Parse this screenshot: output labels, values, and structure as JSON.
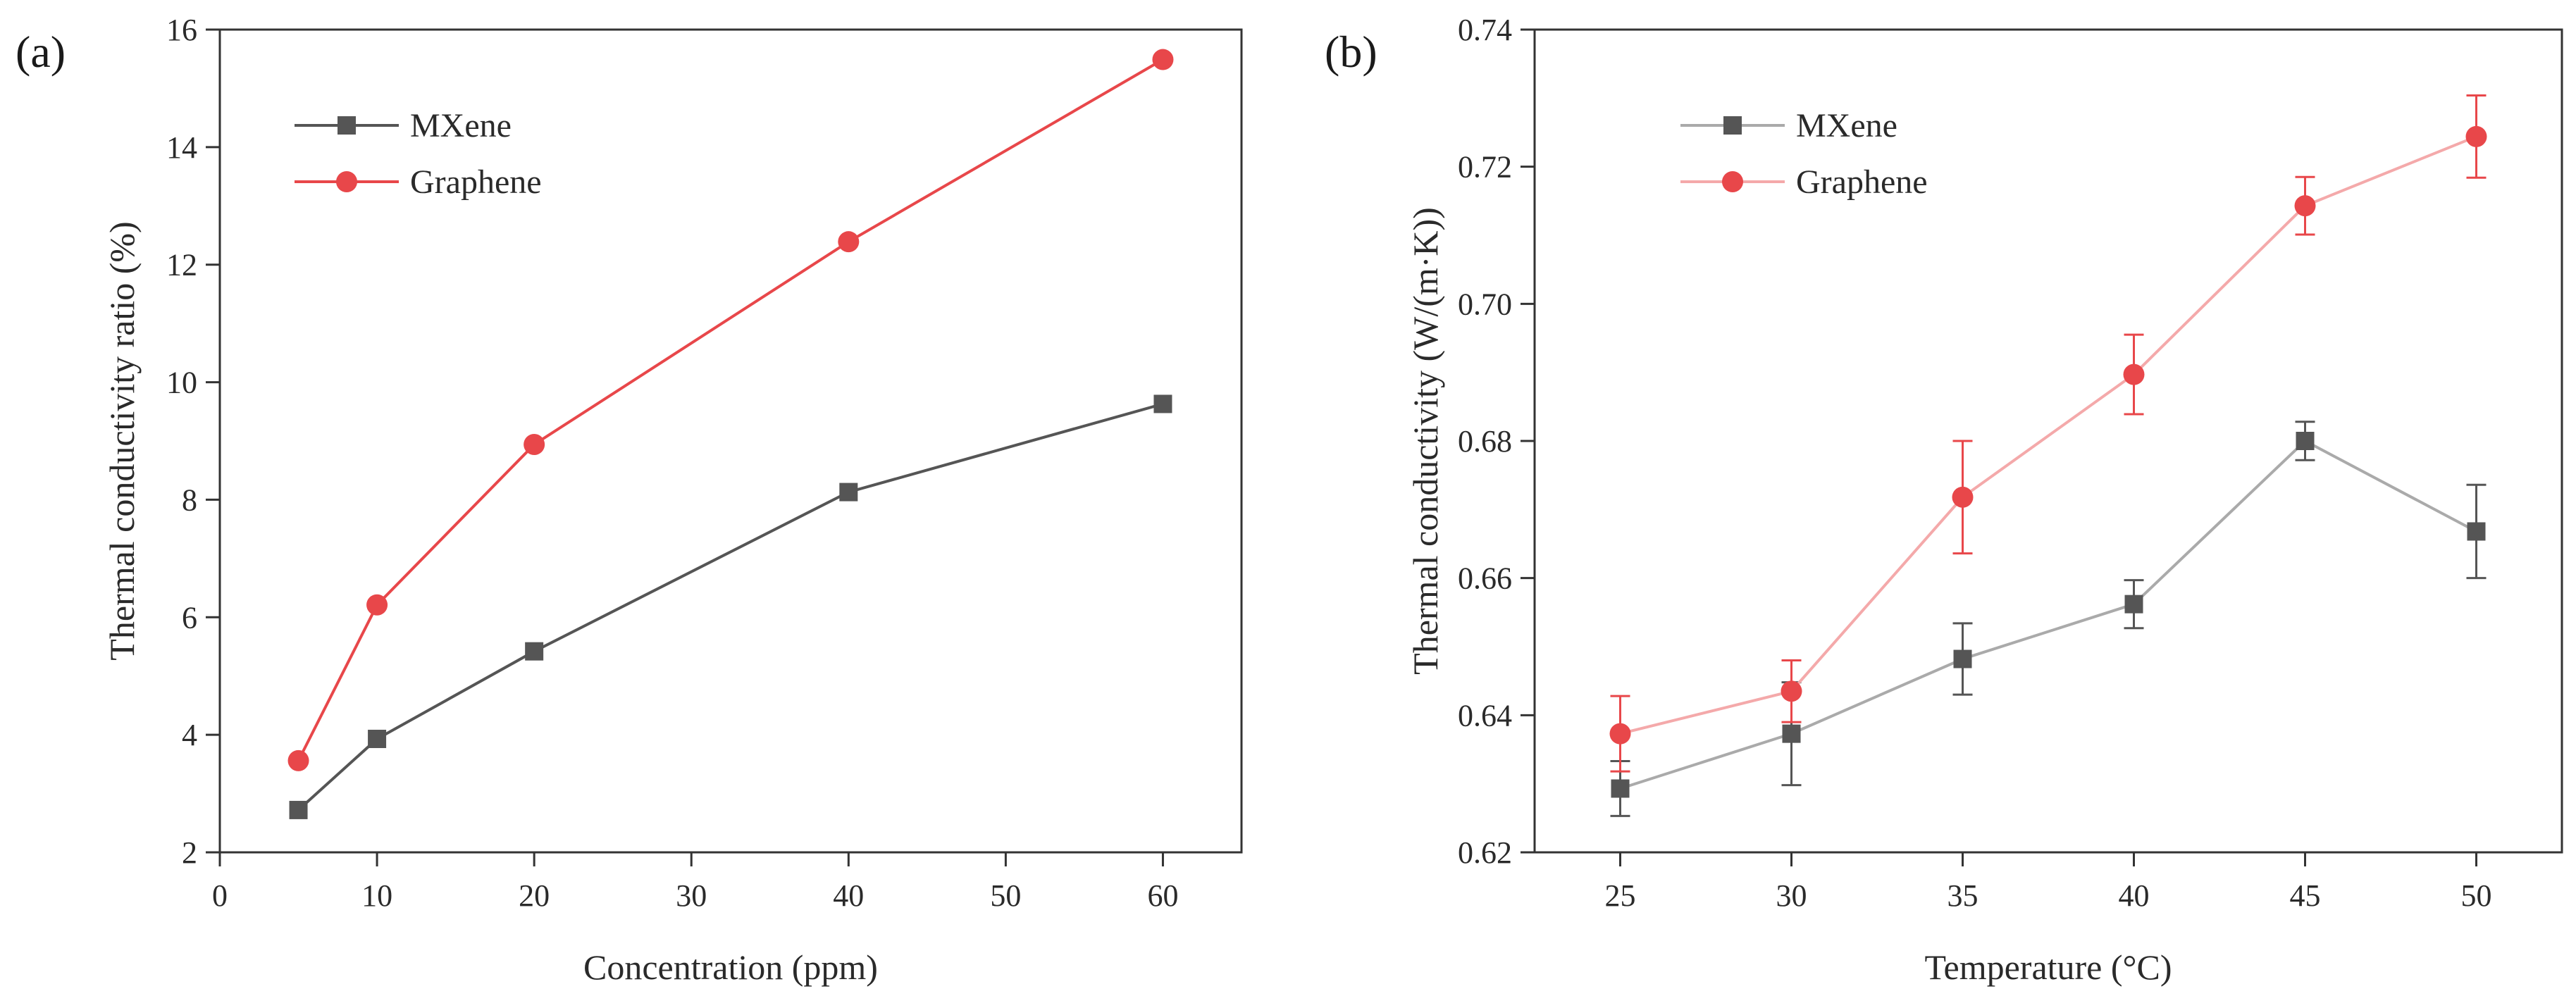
{
  "chart_data": [
    {
      "panel": "(a)",
      "type": "line",
      "xlabel": "Concentration (ppm)",
      "ylabel": "Thermal conductivity ratio (%)",
      "xlim": [
        0,
        65
      ],
      "ylim": [
        2,
        16
      ],
      "xticks": [
        0,
        10,
        20,
        30,
        40,
        50,
        60
      ],
      "yticks": [
        2,
        4,
        6,
        8,
        10,
        12,
        14,
        16
      ],
      "legend_position": "top-left",
      "series": [
        {
          "name": "MXene",
          "marker": "square",
          "color": "#555555",
          "line_color": "#555555",
          "x": [
            5,
            10,
            20,
            40,
            60
          ],
          "y": [
            2.72,
            3.93,
            5.42,
            8.13,
            9.63
          ]
        },
        {
          "name": "Graphene",
          "marker": "circle",
          "color": "#e8474a",
          "line_color": "#e8474a",
          "x": [
            5,
            10,
            20,
            40,
            60
          ],
          "y": [
            3.56,
            6.21,
            8.94,
            12.39,
            15.49
          ]
        }
      ]
    },
    {
      "panel": "(b)",
      "type": "line",
      "xlabel": "Temperature (°C)",
      "ylabel": "Thermal conductivity (W/(m·K))",
      "xlim": [
        22.5,
        52.5
      ],
      "ylim": [
        0.62,
        0.74
      ],
      "xticks": [
        25,
        30,
        35,
        40,
        45,
        50
      ],
      "yticks": [
        0.62,
        0.64,
        0.66,
        0.68,
        0.7,
        0.72,
        0.74
      ],
      "ytick_labels": [
        "0.62",
        "0.64",
        "0.66",
        "0.68",
        "0.70",
        "0.72",
        "0.74"
      ],
      "legend_position": "top-left",
      "series": [
        {
          "name": "MXene",
          "marker": "square",
          "color": "#555555",
          "line_color": "#aaaaaa",
          "x": [
            25,
            30,
            35,
            40,
            45,
            50
          ],
          "y": [
            0.6293,
            0.6373,
            0.6482,
            0.6562,
            0.68,
            0.6668
          ],
          "err": [
            0.004,
            0.0075,
            0.0052,
            0.0035,
            0.0028,
            0.0068
          ]
        },
        {
          "name": "Graphene",
          "marker": "circle",
          "color": "#e8474a",
          "line_color": "#f4a9aa",
          "x": [
            25,
            30,
            35,
            40,
            45,
            50
          ],
          "y": [
            0.6373,
            0.6435,
            0.6718,
            0.6897,
            0.7143,
            0.7244
          ],
          "err": [
            0.0055,
            0.0045,
            0.0082,
            0.0058,
            0.0042,
            0.006
          ]
        }
      ]
    }
  ]
}
